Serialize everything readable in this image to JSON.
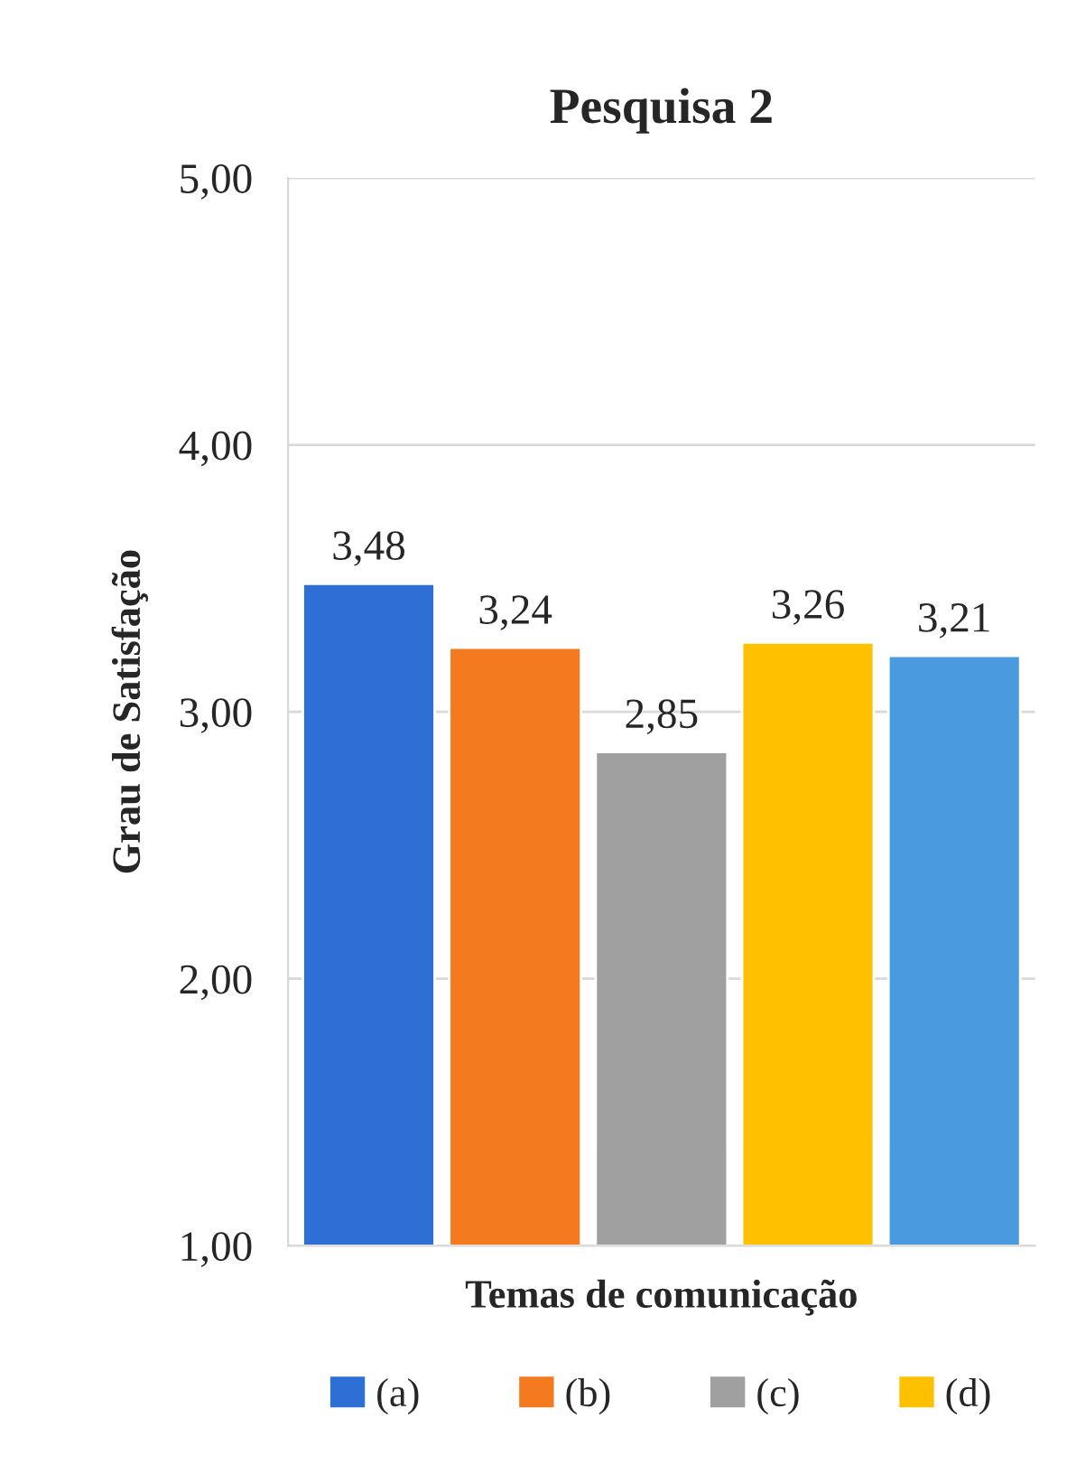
{
  "chart_data": {
    "type": "bar",
    "title": "Pesquisa 2",
    "xlabel": "Temas de comunicação",
    "ylabel": "Grau de Satisfação",
    "categories": [
      null
    ],
    "series": [
      {
        "name": "(a)",
        "color": "#2e6fd6",
        "values": [
          3.48
        ],
        "value_labels": [
          "3,48"
        ]
      },
      {
        "name": "(b)",
        "color": "#f47a20",
        "values": [
          3.24
        ],
        "value_labels": [
          "3,24"
        ]
      },
      {
        "name": "(c)",
        "color": "#a0a0a0",
        "values": [
          2.85
        ],
        "value_labels": [
          "2,85"
        ]
      },
      {
        "name": "(d)",
        "color": "#ffc000",
        "values": [
          3.26
        ],
        "value_labels": [
          "3,26"
        ]
      },
      {
        "color": "#4a9ae0",
        "values": [
          3.21
        ],
        "value_labels": [
          "3,21"
        ]
      }
    ],
    "ylim": [
      1,
      5
    ],
    "yticks": [
      {
        "value": 1,
        "label": "1,00"
      },
      {
        "value": 2,
        "label": "2,00"
      },
      {
        "value": 3,
        "label": "3,00"
      },
      {
        "value": 4,
        "label": "4,00"
      },
      {
        "value": 5,
        "label": "5,00"
      }
    ],
    "grid": "y",
    "legend": "bottom"
  }
}
